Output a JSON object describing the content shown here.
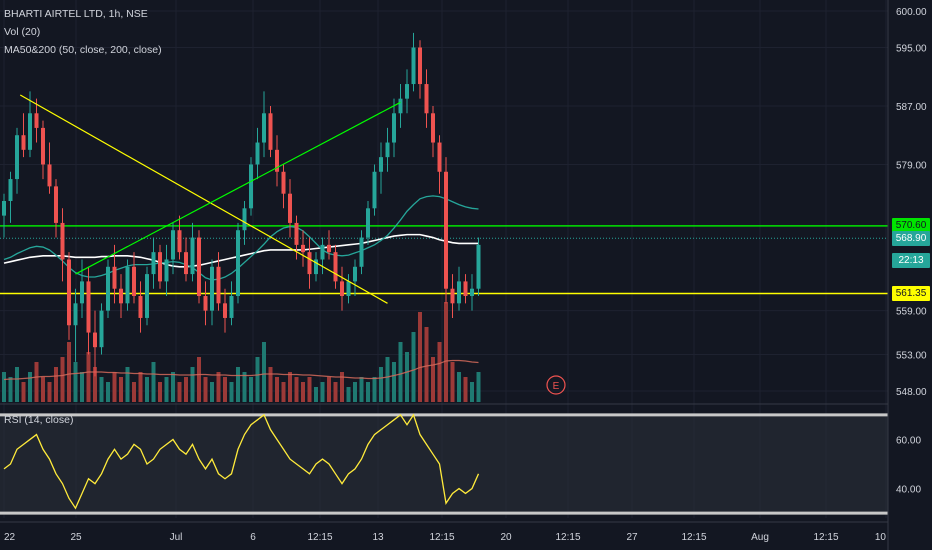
{
  "legend": {
    "title": "BHARTI AIRTEL LTD, 1h, NSE",
    "volume": "Vol (20)",
    "ma": "MA50&200 (50, close, 200, close)"
  },
  "rsi_legend": "RSI (14, close)",
  "price_tags": [
    {
      "label": "570.60",
      "bg": "#00e400",
      "fg": "#131722"
    },
    {
      "label": "568.90",
      "bg": "#26a69a",
      "fg": "#ffffff"
    },
    {
      "label": "22:13",
      "bg": "#26a69a",
      "fg": "#ffffff"
    },
    {
      "label": "561.35",
      "bg": "#ffff00",
      "fg": "#131722"
    }
  ],
  "earnings_marker": "E",
  "colors": {
    "background": "#131722",
    "up": "#26a69a",
    "down": "#ef5350",
    "green_line": "#00ff00",
    "yellow_line": "#ffff00",
    "rsi_line": "#ffeb3b",
    "ma50": "#26a69a",
    "ma200": "#ffffff"
  },
  "chart_data": [
    {
      "type": "candlestick",
      "title": "BHARTI AIRTEL LTD, 1h, NSE",
      "x_tick_labels": [
        "22",
        "25",
        "Jul",
        "6",
        "12:15",
        "13",
        "12:15",
        "20",
        "12:15",
        "27",
        "12:15",
        "Aug",
        "12:15",
        "10"
      ],
      "y_tick_labels": [
        "600.00",
        "595.00",
        "587.00",
        "579.00",
        "559.00",
        "553.00",
        "548.00"
      ],
      "ylim": [
        546.5,
        601.5
      ],
      "horizontal_levels": [
        {
          "value": 570.6,
          "color": "#00e400",
          "label": "570.60"
        },
        {
          "value": 561.35,
          "color": "#ffff00",
          "label": "561.35"
        },
        {
          "value": 568.9,
          "color": "#26a69a",
          "label": "568.90"
        }
      ],
      "trendlines": [
        {
          "color": "#ffff00",
          "from": [
            2.5,
            588.5
          ],
          "to": [
            59,
            560
          ]
        },
        {
          "color": "#00ff00",
          "from": [
            11,
            564
          ],
          "to": [
            61,
            587.5
          ]
        }
      ],
      "candles": [
        [
          572,
          575,
          569,
          574
        ],
        [
          574,
          578,
          571,
          577
        ],
        [
          577,
          584,
          575,
          583
        ],
        [
          583,
          586,
          580,
          581
        ],
        [
          581,
          589,
          580,
          586
        ],
        [
          586,
          588,
          582,
          584
        ],
        [
          584,
          585,
          577,
          579
        ],
        [
          579,
          582,
          575,
          576
        ],
        [
          576,
          577,
          569,
          571
        ],
        [
          571,
          573,
          563,
          566
        ],
        [
          566,
          567,
          555,
          557
        ],
        [
          557,
          562,
          552,
          560
        ],
        [
          560,
          566,
          558,
          563
        ],
        [
          563,
          565,
          553,
          556
        ],
        [
          556,
          559,
          550,
          554
        ],
        [
          554,
          560,
          553,
          559
        ],
        [
          559,
          566,
          558,
          565
        ],
        [
          565,
          568,
          560,
          562
        ],
        [
          562,
          564,
          558,
          560
        ],
        [
          560,
          566,
          559,
          565
        ],
        [
          565,
          567,
          560,
          561
        ],
        [
          561,
          563,
          556,
          558
        ],
        [
          558,
          565,
          557,
          564
        ],
        [
          564,
          569,
          562,
          567
        ],
        [
          567,
          568,
          562,
          563
        ],
        [
          563,
          568,
          561,
          566
        ],
        [
          566,
          571,
          564,
          570
        ],
        [
          570,
          572,
          566,
          567
        ],
        [
          567,
          569,
          563,
          564
        ],
        [
          564,
          571,
          563,
          569
        ],
        [
          569,
          570,
          560,
          561
        ],
        [
          561,
          563,
          557,
          559
        ],
        [
          559,
          566,
          557,
          565
        ],
        [
          565,
          567,
          559,
          560
        ],
        [
          560,
          562,
          556,
          558
        ],
        [
          558,
          563,
          557,
          561
        ],
        [
          561,
          571,
          560,
          570
        ],
        [
          570,
          574,
          568,
          573
        ],
        [
          573,
          580,
          572,
          579
        ],
        [
          579,
          584,
          577,
          582
        ],
        [
          582,
          589,
          580,
          586
        ],
        [
          586,
          587,
          580,
          581
        ],
        [
          581,
          583,
          576,
          578
        ],
        [
          578,
          579,
          573,
          575
        ],
        [
          575,
          577,
          569,
          571
        ],
        [
          571,
          572,
          566,
          568
        ],
        [
          568,
          570,
          565,
          567
        ],
        [
          567,
          569,
          562,
          564
        ],
        [
          564,
          567,
          563,
          566
        ],
        [
          566,
          569,
          564,
          568
        ],
        [
          568,
          570,
          566,
          567
        ],
        [
          567,
          568,
          562,
          563
        ],
        [
          563,
          565,
          559,
          561
        ],
        [
          561,
          564,
          560,
          563
        ],
        [
          563,
          566,
          561,
          565
        ],
        [
          565,
          570,
          564,
          569
        ],
        [
          569,
          574,
          568,
          573
        ],
        [
          573,
          579,
          572,
          578
        ],
        [
          578,
          582,
          575,
          580
        ],
        [
          580,
          584,
          578,
          582
        ],
        [
          582,
          588,
          580,
          586
        ],
        [
          586,
          590,
          584,
          588
        ],
        [
          588,
          592,
          586,
          590
        ],
        [
          590,
          597,
          589,
          595
        ],
        [
          595,
          596,
          588,
          590
        ],
        [
          590,
          592,
          584,
          586
        ],
        [
          586,
          587,
          580,
          582
        ],
        [
          582,
          583,
          575,
          578
        ],
        [
          578,
          580,
          560,
          562
        ],
        [
          562,
          564,
          558,
          560
        ],
        [
          560,
          565,
          559,
          563
        ],
        [
          563,
          564,
          560,
          561
        ],
        [
          561,
          564,
          559,
          562
        ],
        [
          562,
          569,
          561,
          568
        ]
      ],
      "ma50": [
        566,
        566.3,
        566.8,
        567.2,
        567.6,
        567.8,
        567.7,
        567.3,
        566.6,
        565.8,
        564.9,
        564.2,
        563.8,
        563.6,
        563.6,
        563.8,
        564.1,
        564.5,
        564.8,
        565.1,
        565.3,
        565.3,
        565.3,
        565.4,
        565.5,
        565.6,
        565.7,
        565.6,
        565.3,
        564.9,
        564.2,
        563.5,
        563.2,
        563.3,
        563.6,
        564.1,
        564.8,
        565.6,
        566.4,
        567.2,
        568.1,
        569.1,
        569.8,
        570.3,
        570.5,
        570.4,
        569.9,
        569.1,
        568.2,
        567.3,
        566.8,
        566.6,
        566.5,
        566.6,
        566.9,
        567.2,
        567.6,
        568.0,
        568.6,
        569.3,
        570.3,
        571.4,
        572.6,
        573.5,
        574.3,
        574.6,
        574.7,
        574.6,
        574.3,
        573.9,
        573.5,
        573.2,
        573.0,
        572.9
      ],
      "ma200": [
        565.5,
        565.7,
        565.9,
        566.1,
        566.3,
        566.4,
        566.5,
        566.5,
        566.5,
        566.5,
        566.4,
        566.3,
        566.3,
        566.3,
        566.3,
        566.4,
        566.4,
        566.5,
        566.5,
        566.5,
        566.4,
        566.3,
        566.1,
        565.9,
        565.6,
        565.3,
        565.1,
        565.0,
        565.0,
        565.1,
        565.2,
        565.4,
        565.6,
        565.8,
        566.0,
        566.2,
        566.4,
        566.6,
        566.8,
        567.0,
        567.2,
        567.3,
        567.3,
        567.3,
        567.3,
        567.3,
        567.3,
        567.4,
        567.5,
        567.6,
        567.7,
        567.8,
        567.9,
        568.0,
        568.1,
        568.2,
        568.4,
        568.6,
        568.8,
        569.0,
        569.2,
        569.3,
        569.4,
        569.4,
        569.4,
        569.2,
        569.0,
        568.7,
        568.5,
        568.3,
        568.2,
        568.2,
        568.2,
        568.2
      ]
    },
    {
      "type": "bar",
      "name": "Vol (20)",
      "values": [
        6,
        5,
        7,
        4,
        6,
        8,
        5,
        4,
        7,
        9,
        12,
        8,
        6,
        10,
        7,
        5,
        4,
        6,
        5,
        7,
        4,
        6,
        5,
        8,
        4,
        5,
        6,
        4,
        5,
        7,
        9,
        5,
        4,
        6,
        5,
        4,
        7,
        6,
        5,
        9,
        12,
        7,
        5,
        4,
        6,
        5,
        4,
        5,
        3,
        4,
        5,
        4,
        6,
        3,
        4,
        5,
        4,
        5,
        7,
        9,
        8,
        12,
        10,
        14,
        18,
        15,
        9,
        12,
        20,
        8,
        6,
        5,
        4,
        6
      ],
      "average": [
        4.5,
        4.6,
        4.6,
        4.7,
        4.8,
        5.0,
        5.1,
        5.1,
        5.2,
        5.3,
        5.6,
        5.7,
        5.8,
        6.0,
        6.0,
        6.0,
        5.9,
        5.9,
        5.8,
        5.8,
        5.7,
        5.7,
        5.6,
        5.6,
        5.5,
        5.5,
        5.5,
        5.4,
        5.4,
        5.4,
        5.5,
        5.5,
        5.4,
        5.4,
        5.4,
        5.3,
        5.3,
        5.3,
        5.3,
        5.4,
        5.6,
        5.6,
        5.6,
        5.5,
        5.5,
        5.5,
        5.4,
        5.4,
        5.3,
        5.2,
        5.1,
        5.0,
        5.0,
        4.9,
        4.8,
        4.8,
        4.7,
        4.7,
        4.8,
        5.0,
        5.3,
        5.6,
        6.0,
        6.4,
        6.9,
        7.2,
        7.4,
        7.7,
        8.2,
        8.3,
        8.3,
        8.2,
        8.0,
        7.9
      ]
    },
    {
      "type": "line",
      "name": "RSI (14, close)",
      "y_tick_labels": [
        "60.00",
        "40.00"
      ],
      "ylim": [
        28,
        72
      ],
      "upper_band": 70,
      "lower_band": 30,
      "values": [
        48,
        50,
        56,
        58,
        60,
        62,
        56,
        52,
        46,
        42,
        36,
        32,
        38,
        44,
        42,
        46,
        52,
        56,
        52,
        54,
        58,
        56,
        50,
        52,
        56,
        58,
        60,
        56,
        54,
        58,
        52,
        48,
        52,
        46,
        44,
        46,
        56,
        62,
        66,
        68,
        70,
        64,
        60,
        56,
        52,
        50,
        48,
        46,
        50,
        52,
        50,
        46,
        42,
        46,
        48,
        52,
        58,
        62,
        64,
        66,
        68,
        70,
        66,
        70,
        62,
        58,
        54,
        50,
        34,
        38,
        40,
        38,
        40,
        46
      ]
    }
  ]
}
